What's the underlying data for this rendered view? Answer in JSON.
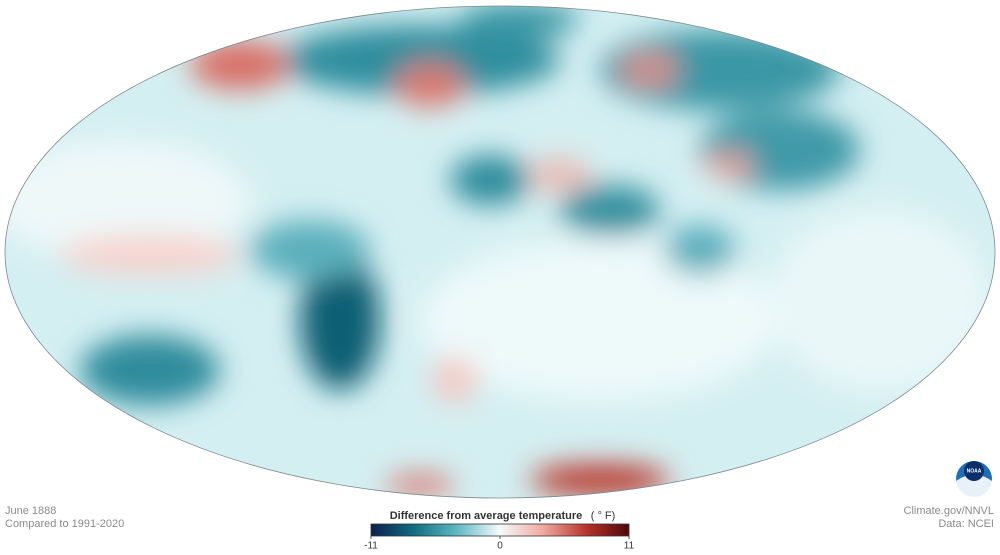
{
  "map": {
    "title": "June 1888",
    "subtitle": "Compared to 1991-2020"
  },
  "legend": {
    "title": "Difference from average temperature",
    "unit": "( ° F)",
    "lim": [
      -11,
      11
    ],
    "ticks": [
      -11,
      0,
      11
    ],
    "colors": [
      "#0b1f4f",
      "#0f6e80",
      "#5fb9c4",
      "#f4fbfc",
      "#f0a9a0",
      "#b8342c",
      "#4d0808"
    ]
  },
  "credits": {
    "source": "Climate.gov/NNVL",
    "data": "Data: NCEI",
    "logo": "NOAA"
  }
}
